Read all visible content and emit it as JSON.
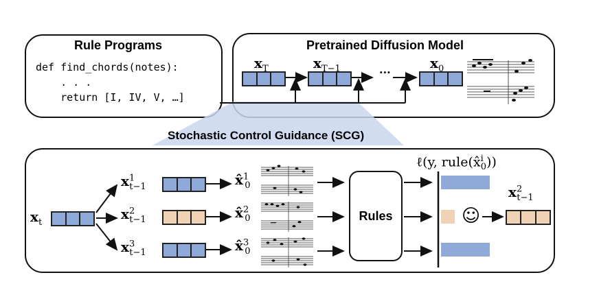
{
  "rule_programs": {
    "title": "Rule Programs",
    "code_lines": [
      "def find_chords(notes):",
      "    . . .",
      "    return [I, IV, V, …]"
    ]
  },
  "diffusion": {
    "title": "Pretrained Diffusion Model",
    "x_T": "T",
    "x_T1": "T−1",
    "ellipsis": "···",
    "x_0": "0"
  },
  "scg": {
    "title": "Stochastic Control Guidance (SCG)",
    "x_t": "t",
    "samples": [
      {
        "sup": "1",
        "sub": "t−1"
      },
      {
        "sup": "2",
        "sub": "t−1"
      },
      {
        "sup": "3",
        "sub": "t−1"
      }
    ],
    "predictions": [
      {
        "sup": "1",
        "sub": "0"
      },
      {
        "sup": "2",
        "sub": "0"
      },
      {
        "sup": "3",
        "sub": "0"
      }
    ],
    "rules_label": "Rules",
    "loss_label": "ℓ(y, rule(x̂",
    "loss_sup": "i",
    "loss_sub": "0",
    "loss_close": "))",
    "result": {
      "sup": "2",
      "sub": "t−1"
    },
    "smiley": "☺",
    "colors": {
      "blue": "#8fa9d9",
      "peach": "#f0d2b5"
    },
    "scores": [
      0.42,
      0.12,
      0.42
    ]
  }
}
